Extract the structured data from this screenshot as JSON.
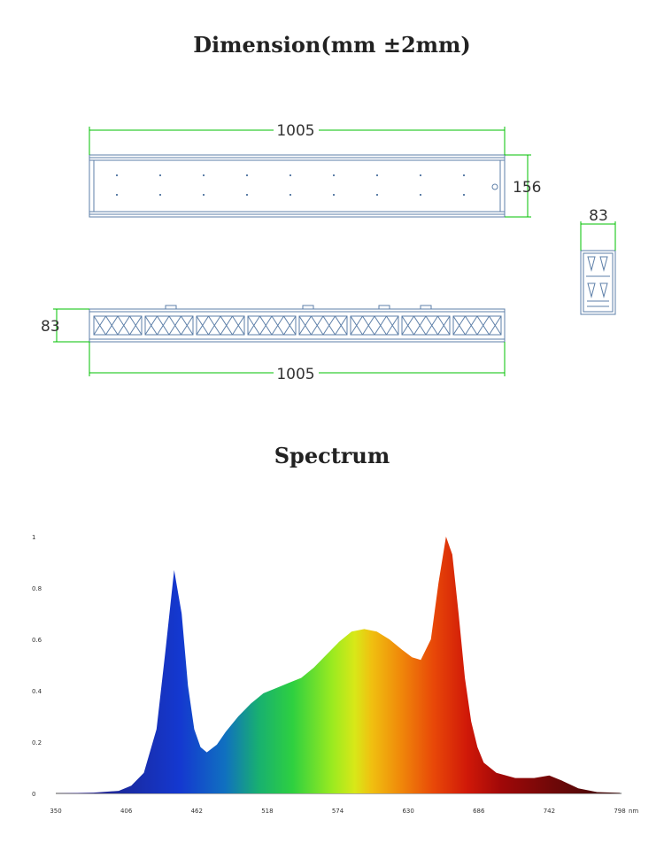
{
  "dimension_section": {
    "title": "Dimension(mm ±2mm)",
    "top_view": {
      "length_label": "1005",
      "width_label": "156"
    },
    "side_view": {
      "height_label": "83",
      "length_label": "1005"
    },
    "end_view": {
      "width_label": "83"
    }
  },
  "spectrum_section": {
    "title": "Spectrum"
  },
  "colors": {
    "drawing_line": "#5d7fa8",
    "dimension_line": "#00c000",
    "blue_peak": "#1438c8",
    "red_peak": "#c00000"
  },
  "chart_data": {
    "type": "area",
    "title": "",
    "xlabel": "",
    "ylabel": "",
    "x_unit": "nm",
    "xlim": [
      350,
      798
    ],
    "ylim": [
      0,
      1
    ],
    "x_ticks": [
      350,
      406,
      462,
      518,
      574,
      630,
      686,
      742,
      798
    ],
    "y_ticks": [
      {
        "v": 0,
        "label": "0"
      },
      {
        "v": 0.2,
        "label": "0.2"
      },
      {
        "v": 0.4,
        "label": "0.4"
      },
      {
        "v": 0.6,
        "label": "0.6"
      },
      {
        "v": 0.8,
        "label": "0.8"
      },
      {
        "v": 1,
        "label": "1"
      }
    ],
    "grid": false,
    "fill": "wavelength-colored",
    "series": [
      {
        "x": [
          350,
          380,
          400,
          410,
          420,
          430,
          437,
          444,
          450,
          455,
          460,
          465,
          470,
          478,
          485,
          495,
          505,
          515,
          525,
          535,
          545,
          555,
          565,
          575,
          585,
          595,
          605,
          615,
          625,
          633,
          640,
          648,
          654,
          660,
          665,
          670,
          675,
          680,
          685,
          690,
          700,
          715,
          730,
          742,
          752,
          765,
          780,
          798
        ],
        "values": [
          0,
          0.003,
          0.01,
          0.03,
          0.08,
          0.25,
          0.55,
          0.87,
          0.7,
          0.42,
          0.25,
          0.18,
          0.16,
          0.19,
          0.24,
          0.3,
          0.35,
          0.39,
          0.41,
          0.43,
          0.45,
          0.49,
          0.54,
          0.59,
          0.63,
          0.64,
          0.63,
          0.6,
          0.56,
          0.53,
          0.52,
          0.6,
          0.82,
          1.0,
          0.93,
          0.7,
          0.45,
          0.28,
          0.18,
          0.12,
          0.08,
          0.06,
          0.06,
          0.07,
          0.05,
          0.02,
          0.005,
          0.002
        ]
      }
    ]
  }
}
